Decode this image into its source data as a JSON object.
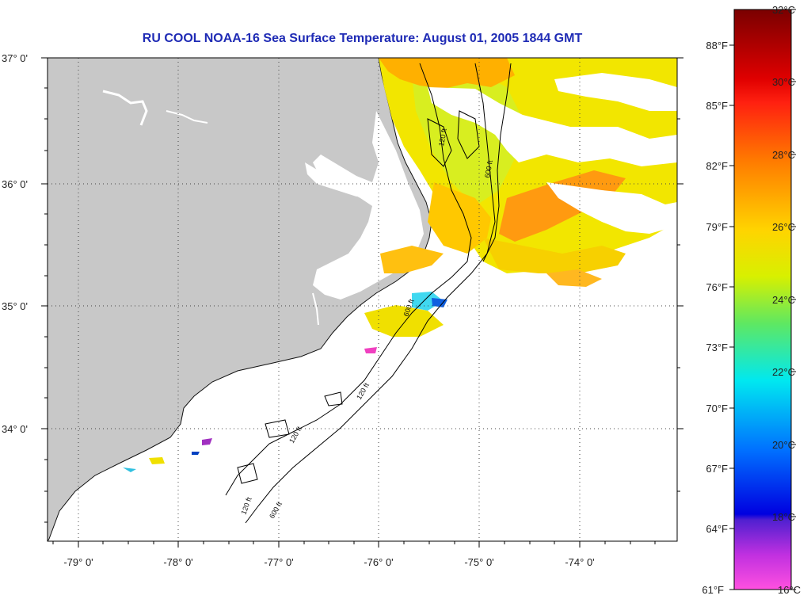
{
  "title": "RU COOL  NOAA-16  Sea Surface Temperature:  August 01, 2005 1844 GMT",
  "map": {
    "lon_labels": [
      "-79° 0'",
      "-78° 0'",
      "-77° 0'",
      "-76° 0'",
      "-75° 0'",
      "-74° 0'"
    ],
    "lat_labels": [
      "37° 0'",
      "36° 0'",
      "35° 0'",
      "34° 0'"
    ],
    "contour_labels": [
      "120 ft",
      "600 ft"
    ],
    "land_color": "#c8c8c8",
    "no_data_color": "#ffffff",
    "graticule": "dotted"
  },
  "colorbar": {
    "celsius": [
      "32°C",
      "30°C",
      "28°C",
      "26°C",
      "24°C",
      "22°C",
      "20°C",
      "18°C",
      "16°C"
    ],
    "fahrenheit": [
      "88°F",
      "85°F",
      "82°F",
      "79°F",
      "76°F",
      "73°F",
      "70°F",
      "67°F",
      "64°F",
      "61°F"
    ],
    "stops": [
      "#7a0000",
      "#ff1010",
      "#ff7a00",
      "#ffd200",
      "#c8f000",
      "#30e890",
      "#00e8f0",
      "#0060ff",
      "#0000e0",
      "#8020d0",
      "#ff30d0",
      "#ff60e8"
    ]
  }
}
